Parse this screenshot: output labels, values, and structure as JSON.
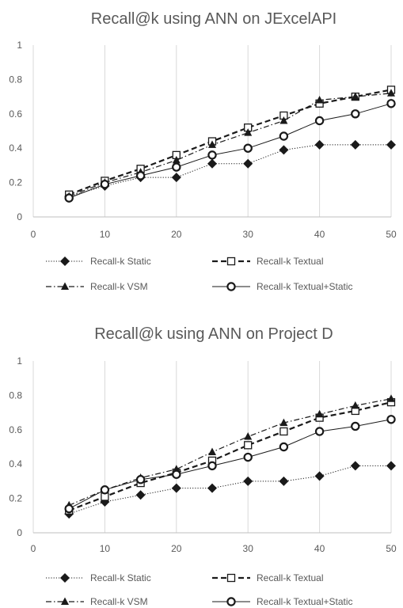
{
  "chart_data": [
    {
      "type": "line",
      "title": "Recall@k using ANN on JExcelAPI",
      "xlabel": "",
      "ylabel": "",
      "xlim": [
        0,
        50
      ],
      "ylim": [
        0,
        1
      ],
      "x_ticks": [
        "0",
        "10",
        "20",
        "30",
        "40",
        "50"
      ],
      "y_ticks": [
        "0",
        "0.2",
        "0.4",
        "0.6",
        "0.8",
        "1"
      ],
      "grid": "vertical",
      "legend_position": "bottom",
      "x": [
        5,
        10,
        15,
        20,
        25,
        30,
        35,
        40,
        45,
        50
      ],
      "series": [
        {
          "name": "Recall-k Static",
          "marker": "diamond",
          "line": "dotted",
          "values": [
            0.12,
            0.18,
            0.23,
            0.23,
            0.31,
            0.31,
            0.39,
            0.42,
            0.42,
            0.42
          ]
        },
        {
          "name": "Recall-k Textual",
          "marker": "square",
          "line": "dashed",
          "values": [
            0.13,
            0.21,
            0.28,
            0.36,
            0.44,
            0.52,
            0.59,
            0.66,
            0.7,
            0.74
          ]
        },
        {
          "name": "Recall-k VSM",
          "marker": "triangle",
          "line": "dashdot",
          "values": [
            0.12,
            0.2,
            0.26,
            0.33,
            0.42,
            0.49,
            0.56,
            0.68,
            0.7,
            0.72
          ]
        },
        {
          "name": "Recall-k Textual+Static",
          "marker": "circle",
          "line": "solid",
          "values": [
            0.11,
            0.19,
            0.24,
            0.29,
            0.36,
            0.4,
            0.47,
            0.56,
            0.6,
            0.66
          ]
        }
      ]
    },
    {
      "type": "line",
      "title": "Recall@k using ANN on Project D",
      "xlabel": "",
      "ylabel": "",
      "xlim": [
        0,
        50
      ],
      "ylim": [
        0,
        1
      ],
      "x_ticks": [
        "0",
        "10",
        "20",
        "30",
        "40",
        "50"
      ],
      "y_ticks": [
        "0",
        "0.2",
        "0.4",
        "0.6",
        "0.8",
        "1"
      ],
      "grid": "vertical",
      "legend_position": "bottom",
      "x": [
        5,
        10,
        15,
        20,
        25,
        30,
        35,
        40,
        45,
        50
      ],
      "series": [
        {
          "name": "Recall-k Static",
          "marker": "diamond",
          "line": "dotted",
          "values": [
            0.11,
            0.18,
            0.22,
            0.26,
            0.26,
            0.3,
            0.3,
            0.33,
            0.39,
            0.39
          ]
        },
        {
          "name": "Recall-k Textual",
          "marker": "square",
          "line": "dashed",
          "values": [
            0.13,
            0.21,
            0.29,
            0.35,
            0.42,
            0.51,
            0.59,
            0.67,
            0.71,
            0.76
          ]
        },
        {
          "name": "Recall-k VSM",
          "marker": "triangle",
          "line": "dashdot",
          "values": [
            0.16,
            0.25,
            0.32,
            0.37,
            0.47,
            0.56,
            0.64,
            0.69,
            0.74,
            0.78
          ]
        },
        {
          "name": "Recall-k Textual+Static",
          "marker": "circle",
          "line": "solid",
          "values": [
            0.14,
            0.25,
            0.31,
            0.34,
            0.39,
            0.44,
            0.5,
            0.59,
            0.62,
            0.66
          ]
        }
      ]
    }
  ],
  "colors": {
    "ink": "#1a1a1a",
    "axis_text": "#595959",
    "grid": "#d9d9d9",
    "title": "#595959"
  }
}
